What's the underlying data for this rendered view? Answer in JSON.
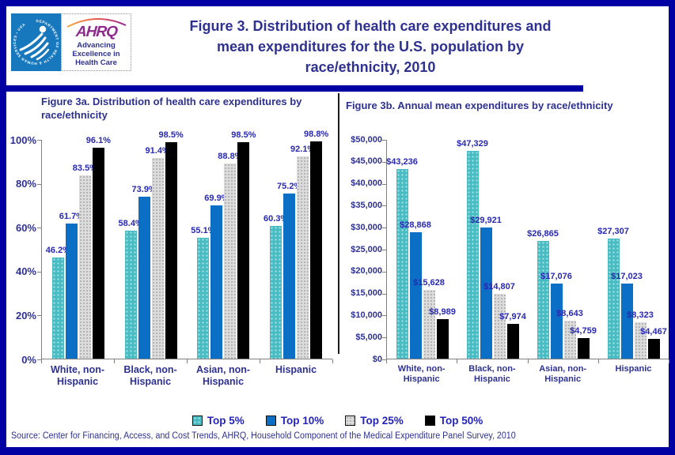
{
  "header": {
    "logo": {
      "hhs_ring_text": "DEPARTMENT OF HEALTH & HUMAN SERVICES • USA",
      "ahrq_name": "AHRQ",
      "ahrq_tagline_lines": [
        "Advancing",
        "Excellence in",
        "Health Care"
      ]
    },
    "title": "Figure 3. Distribution of health care expenditures and mean expenditures for the U.S. population by race/ethnicity, 2010",
    "title_lines": [
      "Figure 3. Distribution of health care expenditures and",
      "mean expenditures for the U.S. population by",
      "race/ethnicity, 2010"
    ]
  },
  "chart_data": [
    {
      "id": "fig3a",
      "type": "bar",
      "title": "Figure 3a. Distribution of health care expenditures by race/ethnicity",
      "title_lines": [
        "Figure 3a. Distribution  of health care expenditures by",
        "race/ethnicity"
      ],
      "categories": [
        "White, non-Hispanic",
        "Black, non-Hispanic",
        "Asian, non-Hispanic",
        "Hispanic"
      ],
      "category_labels": [
        "White, non-\nHispanic",
        "Black, non-\nHispanic",
        "Asian, non-\nHispanic",
        "Hispanic"
      ],
      "series": [
        {
          "name": "Top 5%",
          "swatch": "teal",
          "color": "#47BCC3",
          "values": [
            46.2,
            58.4,
            55.1,
            60.3
          ],
          "labels": [
            "46.2%",
            "58.4%",
            "55.1%",
            "60.3%"
          ]
        },
        {
          "name": "Top 10%",
          "swatch": "blue",
          "color": "#0B70C5",
          "values": [
            61.7,
            73.9,
            69.9,
            75.2
          ],
          "labels": [
            "61.7%",
            "73.9%",
            "69.9%",
            "75.2%"
          ]
        },
        {
          "name": "Top 25%",
          "swatch": "gray",
          "color": "#DCDCDC",
          "values": [
            83.5,
            91.4,
            88.8,
            92.1
          ],
          "labels": [
            "83.5%",
            "91.4%",
            "88.8%",
            "92.1%"
          ]
        },
        {
          "name": "Top 50%",
          "swatch": "black",
          "color": "#000000",
          "values": [
            96.1,
            98.5,
            98.5,
            98.8
          ],
          "labels": [
            "96.1%",
            "98.5%",
            "98.5%",
            "98.8%"
          ]
        }
      ],
      "xlabel": "",
      "ylabel": "",
      "ylim": [
        0,
        100
      ],
      "ytick_labels": [
        "0%",
        "20%",
        "40%",
        "60%",
        "80%",
        "100%"
      ],
      "grid": false,
      "legend_position": "bottom-shared"
    },
    {
      "id": "fig3b",
      "type": "bar",
      "title": "Figure 3b. Annual mean expenditures by race/ethnicity",
      "title_lines": [
        "Figure 3b. Annual mean expenditures by race/ethnicity"
      ],
      "categories": [
        "White, non-Hispanic",
        "Black, non-Hispanic",
        "Asian, non-Hispanic",
        "Hispanic"
      ],
      "category_labels": [
        "White, non-\nHispanic",
        "Black, non-\nHispanic",
        "Asian, non-\nHispanic",
        "Hispanic"
      ],
      "series": [
        {
          "name": "Top 5%",
          "swatch": "teal",
          "color": "#47BCC3",
          "values": [
            43236,
            47329,
            26865,
            27307
          ],
          "labels": [
            "$43,236",
            "$47,329",
            "$26,865",
            "$27,307"
          ]
        },
        {
          "name": "Top 10%",
          "swatch": "blue",
          "color": "#0B70C5",
          "values": [
            28868,
            29921,
            17076,
            17023
          ],
          "labels": [
            "$28,868",
            "$29,921",
            "$17,076",
            "$17,023"
          ]
        },
        {
          "name": "Top 25%",
          "swatch": "gray",
          "color": "#DCDCDC",
          "values": [
            15628,
            14807,
            8643,
            8323
          ],
          "labels": [
            "$15,628",
            "$14,807",
            "$8,643",
            "$8,323"
          ]
        },
        {
          "name": "Top 50%",
          "swatch": "black",
          "color": "#000000",
          "values": [
            8989,
            7974,
            4759,
            4467
          ],
          "labels": [
            "$8,989",
            "$7,974",
            "$4,759",
            "$4,467"
          ]
        }
      ],
      "xlabel": "",
      "ylabel": "",
      "ylim": [
        0,
        50000
      ],
      "ytick_labels": [
        "$0",
        "$5,000",
        "$10,000",
        "$15,000",
        "$20,000",
        "$25,000",
        "$30,000",
        "$35,000",
        "$40,000",
        "$45,000",
        "$50,000"
      ],
      "grid": false,
      "legend_position": "bottom-shared"
    }
  ],
  "legend": {
    "items": [
      {
        "label": "Top 5%",
        "swatch": "teal",
        "color": "#47BCC3"
      },
      {
        "label": "Top 10%",
        "swatch": "blue",
        "color": "#0B70C5"
      },
      {
        "label": "Top 25%",
        "swatch": "gray",
        "color": "#DCDCDC"
      },
      {
        "label": "Top 50%",
        "swatch": "black",
        "color": "#000000"
      }
    ]
  },
  "source": "Source: Center for Financing, Access, and Cost Trends, AHRQ, Household Component of the Medical Expenditure Panel Survey, 2010",
  "colors": {
    "border_navy": "#0000A3",
    "title_navy": "#2E3192",
    "data_label_blue": "#2828B4",
    "legend_text_blue": "#2323BC",
    "axis_gray": "#808080",
    "hhs_blue": "#1778BE",
    "ahrq_purple": "#8F2A8F"
  }
}
